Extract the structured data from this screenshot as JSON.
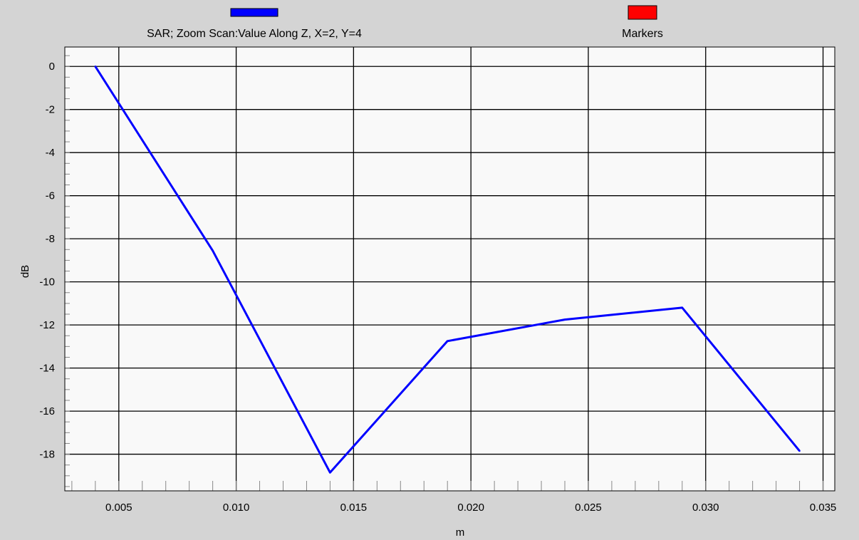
{
  "chart_data": {
    "type": "line",
    "xlabel": "m",
    "ylabel": "dB",
    "xlim": [
      0.0027,
      0.0355
    ],
    "ylim": [
      -19.7,
      0.9
    ],
    "x_ticks": [
      0.005,
      0.01,
      0.015,
      0.02,
      0.025,
      0.03,
      0.035
    ],
    "x_tick_labels": [
      "0.005",
      "0.010",
      "0.015",
      "0.020",
      "0.025",
      "0.030",
      "0.035"
    ],
    "y_ticks": [
      0,
      -2,
      -4,
      -6,
      -8,
      -10,
      -12,
      -14,
      -16,
      -18
    ],
    "y_tick_labels": [
      "0",
      "-2",
      "-4",
      "-6",
      "-8",
      "-10",
      "-12",
      "-14",
      "-16",
      "-18"
    ],
    "grid": true,
    "legend_placement": "top",
    "legend": [
      {
        "label": "SAR; Zoom Scan:Value Along Z, X=2, Y=4",
        "color": "#0000ff"
      },
      {
        "label": "Markers",
        "color": "#ff0000"
      }
    ],
    "series": [
      {
        "name": "SAR; Zoom Scan:Value Along Z, X=2, Y=4",
        "color": "#0000ff",
        "x": [
          0.004,
          0.009,
          0.014,
          0.019,
          0.024,
          0.029,
          0.034
        ],
        "y": [
          0.0,
          -8.55,
          -18.85,
          -12.75,
          -11.75,
          -11.2,
          -17.85
        ]
      }
    ]
  }
}
